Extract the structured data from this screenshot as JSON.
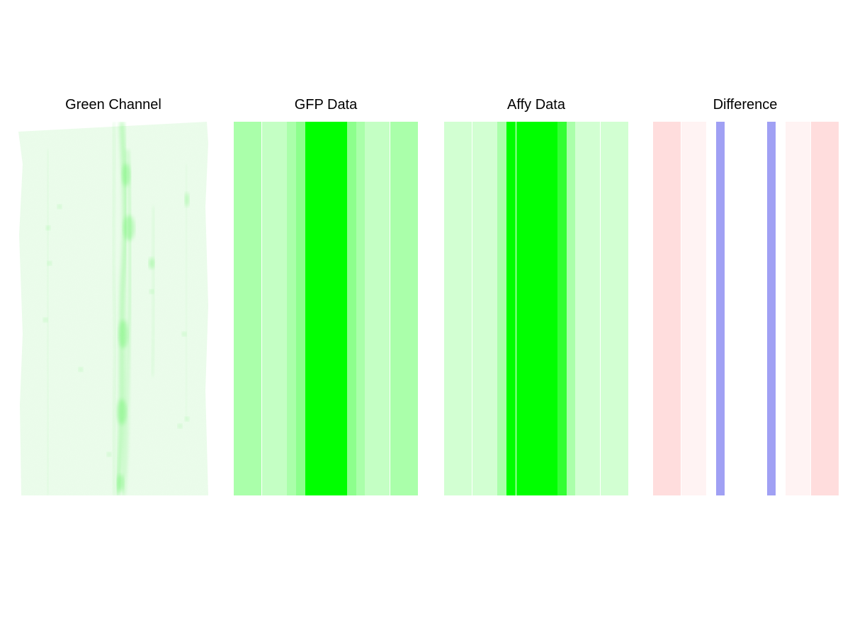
{
  "panels": [
    {
      "title": "Green Channel",
      "kind": "micrograph",
      "base_color": "#eafbea",
      "stain_color": "#5cf35c"
    },
    {
      "title": "GFP Data",
      "kind": "bands",
      "bands": [
        {
          "from": 0.0,
          "to": 0.15,
          "color": "#aaffaa"
        },
        {
          "from": 0.154,
          "to": 0.288,
          "color": "#c4ffc4"
        },
        {
          "from": 0.288,
          "to": 0.338,
          "color": "#aaffaa"
        },
        {
          "from": 0.338,
          "to": 0.388,
          "color": "#8dff8d"
        },
        {
          "from": 0.388,
          "to": 0.615,
          "color": "#00ff00"
        },
        {
          "from": 0.615,
          "to": 0.665,
          "color": "#8dff8d"
        },
        {
          "from": 0.665,
          "to": 0.712,
          "color": "#aaffaa"
        },
        {
          "from": 0.712,
          "to": 0.846,
          "color": "#c4ffc4"
        },
        {
          "from": 0.85,
          "to": 1.0,
          "color": "#aaffaa"
        }
      ]
    },
    {
      "title": "Affy Data",
      "kind": "bands",
      "bands": [
        {
          "from": 0.0,
          "to": 0.15,
          "color": "#d2ffd2"
        },
        {
          "from": 0.154,
          "to": 0.288,
          "color": "#d2ffd2"
        },
        {
          "from": 0.288,
          "to": 0.338,
          "color": "#aaffaa"
        },
        {
          "from": 0.338,
          "to": 0.388,
          "color": "#00ff00"
        },
        {
          "from": 0.392,
          "to": 0.615,
          "color": "#00ff00"
        },
        {
          "from": 0.615,
          "to": 0.665,
          "color": "#33ff33"
        },
        {
          "from": 0.665,
          "to": 0.712,
          "color": "#aaffaa"
        },
        {
          "from": 0.712,
          "to": 0.846,
          "color": "#d2ffd2"
        },
        {
          "from": 0.85,
          "to": 1.0,
          "color": "#d2ffd2"
        }
      ]
    },
    {
      "title": "Difference",
      "kind": "bands",
      "bands": [
        {
          "from": 0.0,
          "to": 0.15,
          "color": "#ffdddd"
        },
        {
          "from": 0.154,
          "to": 0.288,
          "color": "#fff3f3"
        },
        {
          "from": 0.338,
          "to": 0.385,
          "color": "#a0a0f4"
        },
        {
          "from": 0.615,
          "to": 0.662,
          "color": "#a0a0f4"
        },
        {
          "from": 0.712,
          "to": 0.846,
          "color": "#fff3f3"
        },
        {
          "from": 0.85,
          "to": 1.0,
          "color": "#ffdddd"
        }
      ]
    }
  ]
}
